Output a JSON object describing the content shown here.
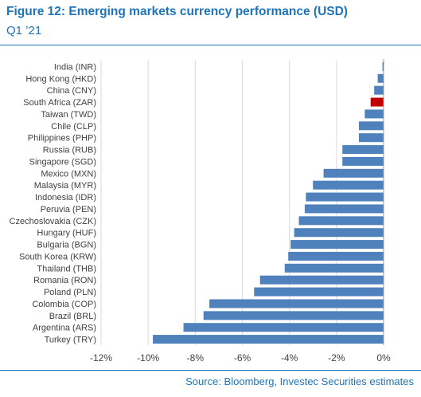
{
  "header": {
    "title": "Figure 12: Emerging markets currency performance (USD)",
    "subtitle": "Q1 ’21"
  },
  "footer": {
    "source": "Source: Bloomberg, Investec Securities estimates"
  },
  "colors": {
    "bar": "#4f81bd",
    "highlight": "#c00000",
    "brand": "#1f73b7",
    "axis": "#999999",
    "text": "#404040"
  },
  "chart_data": {
    "type": "bar",
    "orientation": "horizontal",
    "highlight_category": "South Africa (ZAR)",
    "categories": [
      "India (INR)",
      "Hong Kong (HKD)",
      "China (CNY)",
      "South Africa (ZAR)",
      "Taiwan (TWD)",
      "Chile (CLP)",
      "Philippines (PHP)",
      "Russia (RUB)",
      "Singapore (SGD)",
      "Mexico (MXN)",
      "Malaysia (MYR)",
      "Indonesia (IDR)",
      "Peruvia (PEN)",
      "Czechoslovakia (CZK)",
      "Hungary (HUF)",
      "Bulgaria (BGN)",
      "South Korea (KRW)",
      "Thailand (THB)",
      "Romania (RON)",
      "Poland (PLN)",
      "Colombia (COP)",
      "Brazil (BRL)",
      "Argentina (ARS)",
      "Turkey (TRY)"
    ],
    "values": [
      -0.05,
      -0.25,
      -0.4,
      -0.55,
      -0.8,
      -1.05,
      -1.05,
      -1.75,
      -1.75,
      -2.55,
      -3.0,
      -3.3,
      -3.35,
      -3.6,
      -3.8,
      -3.95,
      -4.05,
      -4.2,
      -5.25,
      -5.5,
      -7.4,
      -7.65,
      -8.5,
      -9.8
    ],
    "xlim": [
      -12,
      0
    ],
    "xticks": [
      -12,
      -10,
      -8,
      -6,
      -4,
      -2,
      0
    ],
    "xtick_labels": [
      "-12%",
      "-10%",
      "-8%",
      "-6%",
      "-4%",
      "-2%",
      "0%"
    ],
    "grid": true,
    "legend": "none"
  }
}
